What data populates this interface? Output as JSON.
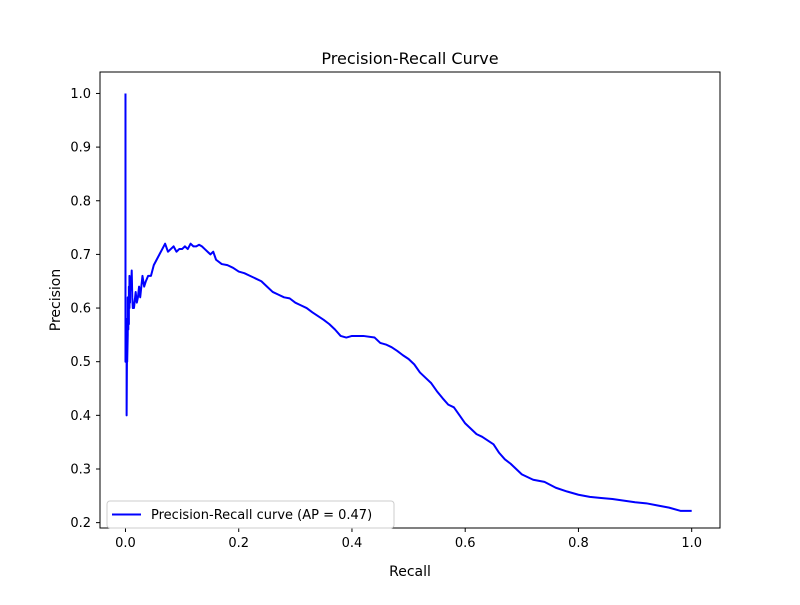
{
  "chart_data": {
    "type": "line",
    "title": "Precision-Recall Curve",
    "xlabel": "Recall",
    "ylabel": "Precision",
    "xlim": [
      -0.045,
      1.05
    ],
    "ylim": [
      0.19,
      1.04
    ],
    "xticks": [
      0.0,
      0.2,
      0.4,
      0.6,
      0.8,
      1.0
    ],
    "xtick_labels": [
      "0.0",
      "0.2",
      "0.4",
      "0.6",
      "0.8",
      "1.0"
    ],
    "yticks": [
      0.2,
      0.3,
      0.4,
      0.5,
      0.6,
      0.7,
      0.8,
      0.9,
      1.0
    ],
    "ytick_labels": [
      "0.2",
      "0.3",
      "0.4",
      "0.5",
      "0.6",
      "0.7",
      "0.8",
      "0.9",
      "1.0"
    ],
    "grid": false,
    "legend": {
      "placement": "lower-left"
    },
    "series": [
      {
        "name": "Precision-Recall curve (AP = 0.47)",
        "color": "#0000ff",
        "x": [
          0.0,
          0.0,
          0.002,
          0.002,
          0.003,
          0.003,
          0.004,
          0.004,
          0.005,
          0.005,
          0.006,
          0.006,
          0.007,
          0.007,
          0.008,
          0.008,
          0.009,
          0.01,
          0.011,
          0.012,
          0.013,
          0.015,
          0.017,
          0.018,
          0.02,
          0.022,
          0.024,
          0.026,
          0.028,
          0.03,
          0.033,
          0.036,
          0.04,
          0.045,
          0.05,
          0.055,
          0.06,
          0.065,
          0.07,
          0.075,
          0.08,
          0.085,
          0.09,
          0.095,
          0.1,
          0.105,
          0.11,
          0.115,
          0.12,
          0.125,
          0.13,
          0.135,
          0.14,
          0.145,
          0.15,
          0.155,
          0.16,
          0.17,
          0.18,
          0.19,
          0.2,
          0.21,
          0.22,
          0.23,
          0.24,
          0.25,
          0.26,
          0.27,
          0.28,
          0.29,
          0.3,
          0.31,
          0.32,
          0.33,
          0.34,
          0.35,
          0.36,
          0.37,
          0.38,
          0.39,
          0.4,
          0.42,
          0.44,
          0.45,
          0.46,
          0.47,
          0.48,
          0.49,
          0.5,
          0.51,
          0.52,
          0.53,
          0.54,
          0.55,
          0.56,
          0.57,
          0.58,
          0.59,
          0.6,
          0.61,
          0.62,
          0.63,
          0.64,
          0.65,
          0.66,
          0.67,
          0.68,
          0.69,
          0.7,
          0.72,
          0.74,
          0.76,
          0.78,
          0.8,
          0.82,
          0.84,
          0.86,
          0.88,
          0.9,
          0.92,
          0.94,
          0.96,
          0.98,
          1.0
        ],
        "y": [
          1.0,
          0.5,
          0.5,
          0.4,
          0.58,
          0.5,
          0.55,
          0.62,
          0.56,
          0.6,
          0.57,
          0.64,
          0.6,
          0.66,
          0.61,
          0.63,
          0.65,
          0.64,
          0.67,
          0.62,
          0.6,
          0.6,
          0.62,
          0.63,
          0.61,
          0.62,
          0.64,
          0.62,
          0.64,
          0.66,
          0.64,
          0.65,
          0.66,
          0.66,
          0.68,
          0.69,
          0.7,
          0.71,
          0.72,
          0.705,
          0.71,
          0.715,
          0.705,
          0.71,
          0.71,
          0.715,
          0.71,
          0.72,
          0.715,
          0.715,
          0.718,
          0.715,
          0.71,
          0.705,
          0.7,
          0.705,
          0.69,
          0.682,
          0.68,
          0.675,
          0.668,
          0.665,
          0.66,
          0.655,
          0.65,
          0.64,
          0.63,
          0.625,
          0.62,
          0.618,
          0.61,
          0.605,
          0.6,
          0.592,
          0.585,
          0.578,
          0.57,
          0.56,
          0.548,
          0.545,
          0.548,
          0.548,
          0.545,
          0.535,
          0.532,
          0.527,
          0.52,
          0.512,
          0.505,
          0.495,
          0.48,
          0.47,
          0.46,
          0.445,
          0.432,
          0.42,
          0.415,
          0.4,
          0.385,
          0.375,
          0.365,
          0.36,
          0.353,
          0.346,
          0.33,
          0.318,
          0.31,
          0.3,
          0.29,
          0.28,
          0.276,
          0.265,
          0.258,
          0.252,
          0.248,
          0.246,
          0.244,
          0.241,
          0.238,
          0.236,
          0.232,
          0.228,
          0.222,
          0.222
        ]
      }
    ]
  }
}
